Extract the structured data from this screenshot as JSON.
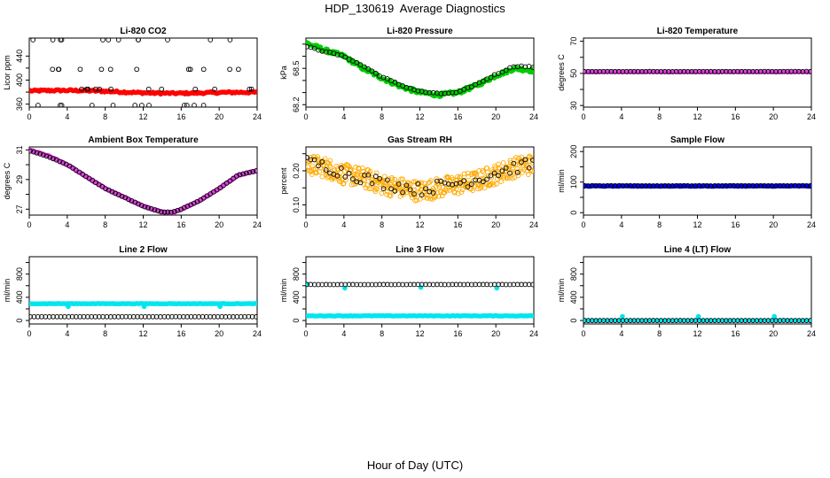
{
  "page": {
    "title": "HDP_130619  Average Diagnostics",
    "x_label": "Hour of Day (UTC)"
  },
  "chart_data": [
    {
      "id": "co2",
      "type": "scatter",
      "title": "Li-820 CO2",
      "ylabel": "Licor ppm",
      "xlim": [
        0,
        24
      ],
      "ylim": [
        355,
        470
      ],
      "yticks": [
        360,
        380,
        400,
        420,
        440
      ],
      "ytick_labels": [
        "360",
        "",
        "400",
        "",
        "440"
      ],
      "series": [
        {
          "style": "filled",
          "color": "#ff0000",
          "gen": {
            "kind": "wave",
            "n": 150,
            "base": 382,
            "amp": 1.5,
            "noise": 1.5,
            "trend": -4
          }
        },
        {
          "style": "open",
          "color": "#000000",
          "gen": {
            "kind": "levels",
            "levels": [
              467,
              418,
              385,
              358
            ],
            "n": 12
          }
        }
      ]
    },
    {
      "id": "pressure",
      "type": "scatter",
      "title": "Li-820 Pressure",
      "ylabel": "kPa",
      "xlim": [
        0,
        24
      ],
      "ylim": [
        68.18,
        68.75
      ],
      "yticks": [
        68.2,
        68.3,
        68.4,
        68.5,
        68.6,
        68.7
      ],
      "ytick_labels": [
        "68.2",
        "",
        "",
        "68.5",
        "",
        ""
      ],
      "series": [
        {
          "style": "filled",
          "color": "#00cc00",
          "gen": {
            "kind": "path",
            "pts": [
              [
                0,
                68.71
              ],
              [
                2,
                68.65
              ],
              [
                4,
                68.6
              ],
              [
                6,
                68.5
              ],
              [
                8,
                68.42
              ],
              [
                10,
                68.35
              ],
              [
                12,
                68.3
              ],
              [
                14,
                68.28
              ],
              [
                16,
                68.3
              ],
              [
                18,
                68.36
              ],
              [
                20,
                68.44
              ],
              [
                22,
                68.5
              ],
              [
                24,
                68.48
              ]
            ],
            "n": 200,
            "noise": 0.015
          }
        },
        {
          "style": "open",
          "color": "#000000",
          "gen": {
            "kind": "path",
            "pts": [
              [
                0,
                68.68
              ],
              [
                2,
                68.64
              ],
              [
                4,
                68.6
              ],
              [
                6,
                68.52
              ],
              [
                8,
                68.43
              ],
              [
                10,
                68.36
              ],
              [
                12,
                68.31
              ],
              [
                14,
                68.29
              ],
              [
                16,
                68.3
              ],
              [
                18,
                68.37
              ],
              [
                20,
                68.45
              ],
              [
                22,
                68.52
              ],
              [
                24,
                68.51
              ]
            ],
            "n": 60,
            "noise": 0.005
          }
        }
      ]
    },
    {
      "id": "temperature",
      "type": "scatter",
      "title": "Li-820 Temperature",
      "ylabel": "degrees C",
      "xlim": [
        0,
        24
      ],
      "ylim": [
        29,
        72
      ],
      "yticks": [
        30,
        40,
        50,
        60,
        70
      ],
      "ytick_labels": [
        "30",
        "",
        "50",
        "",
        "70"
      ],
      "series": [
        {
          "style": "filled",
          "color": "#dd44dd",
          "gen": {
            "kind": "flat",
            "value": 50.9,
            "n": 80,
            "noise": 0.1
          }
        },
        {
          "style": "open",
          "color": "#000000",
          "gen": {
            "kind": "flat",
            "value": 51.2,
            "n": 60,
            "noise": 0.05
          }
        }
      ]
    },
    {
      "id": "ambient",
      "type": "scatter",
      "title": "Ambient Box Temperature",
      "ylabel": "degrees C",
      "xlim": [
        0,
        24
      ],
      "ylim": [
        26.6,
        31.2
      ],
      "yticks": [
        27,
        28,
        29,
        30,
        31
      ],
      "ytick_labels": [
        "27",
        "",
        "29",
        "",
        "31"
      ],
      "series": [
        {
          "style": "filled",
          "color": "#dd44dd",
          "gen": {
            "kind": "path",
            "pts": [
              [
                0,
                31.0
              ],
              [
                2,
                30.6
              ],
              [
                4,
                30.0
              ],
              [
                6,
                29.2
              ],
              [
                8,
                28.4
              ],
              [
                10,
                27.8
              ],
              [
                12,
                27.2
              ],
              [
                14,
                26.8
              ],
              [
                15,
                26.75
              ],
              [
                16,
                27.0
              ],
              [
                18,
                27.6
              ],
              [
                20,
                28.4
              ],
              [
                22,
                29.3
              ],
              [
                24,
                29.6
              ]
            ],
            "n": 160,
            "noise": 0.03
          }
        },
        {
          "style": "open",
          "color": "#000000",
          "gen": {
            "kind": "path",
            "pts": [
              [
                0,
                30.95
              ],
              [
                2,
                30.55
              ],
              [
                4,
                30.0
              ],
              [
                6,
                29.2
              ],
              [
                8,
                28.4
              ],
              [
                10,
                27.8
              ],
              [
                12,
                27.2
              ],
              [
                14,
                26.8
              ],
              [
                15,
                26.8
              ],
              [
                16,
                27.0
              ],
              [
                18,
                27.6
              ],
              [
                20,
                28.4
              ],
              [
                22,
                29.3
              ],
              [
                24,
                29.6
              ]
            ],
            "n": 70,
            "noise": 0.01
          }
        }
      ]
    },
    {
      "id": "rh",
      "type": "scatter",
      "title": "Gas Stream RH",
      "ylabel": "percent",
      "xlim": [
        0,
        24
      ],
      "ylim": [
        0.07,
        0.27
      ],
      "yticks": [
        0.1,
        0.15,
        0.2,
        0.25
      ],
      "ytick_labels": [
        "0.10",
        "",
        "0.20",
        ""
      ],
      "series": [
        {
          "style": "open",
          "color": "#ffaa00",
          "gen": {
            "kind": "path",
            "pts": [
              [
                0,
                0.22
              ],
              [
                2,
                0.21
              ],
              [
                4,
                0.19
              ],
              [
                6,
                0.18
              ],
              [
                8,
                0.16
              ],
              [
                10,
                0.15
              ],
              [
                12,
                0.14
              ],
              [
                14,
                0.15
              ],
              [
                16,
                0.16
              ],
              [
                18,
                0.17
              ],
              [
                20,
                0.19
              ],
              [
                22,
                0.21
              ],
              [
                24,
                0.22
              ]
            ],
            "n": 400,
            "noise": 0.03
          }
        },
        {
          "style": "open",
          "color": "#000000",
          "gen": {
            "kind": "path",
            "pts": [
              [
                0,
                0.225
              ],
              [
                2,
                0.215
              ],
              [
                4,
                0.195
              ],
              [
                6,
                0.18
              ],
              [
                8,
                0.165
              ],
              [
                10,
                0.155
              ],
              [
                12,
                0.145
              ],
              [
                14,
                0.155
              ],
              [
                16,
                0.165
              ],
              [
                18,
                0.175
              ],
              [
                20,
                0.195
              ],
              [
                22,
                0.21
              ],
              [
                24,
                0.22
              ]
            ],
            "n": 60,
            "noise": 0.018
          }
        }
      ]
    },
    {
      "id": "sample",
      "type": "scatter",
      "title": "Sample Flow",
      "ylabel": "ml/min",
      "xlim": [
        0,
        24
      ],
      "ylim": [
        -8,
        215
      ],
      "yticks": [
        0,
        50,
        100,
        150,
        200
      ],
      "ytick_labels": [
        "0",
        "",
        "100",
        "",
        "200"
      ],
      "series": [
        {
          "style": "filled",
          "color": "#0000ee",
          "gen": {
            "kind": "flat",
            "value": 87,
            "n": 120,
            "noise": 1.0
          }
        },
        {
          "style": "open",
          "color": "#000000",
          "gen": {
            "kind": "flat",
            "value": 88,
            "n": 60,
            "noise": 0.5
          }
        }
      ]
    },
    {
      "id": "line2",
      "type": "scatter",
      "title": "Line 2 Flow",
      "ylabel": "ml/min",
      "xlim": [
        0,
        24
      ],
      "ylim": [
        -60,
        1100
      ],
      "yticks": [
        0,
        200,
        400,
        600,
        800,
        1000
      ],
      "ytick_labels": [
        "0",
        "",
        "400",
        "",
        "800",
        ""
      ],
      "series": [
        {
          "style": "filled",
          "color": "#00e5ee",
          "gen": {
            "kind": "flat",
            "value": 290,
            "n": 120,
            "noise": 4,
            "spikes": [
              [
                4.1,
                240
              ],
              [
                12.1,
                240
              ],
              [
                20.1,
                240
              ]
            ]
          }
        },
        {
          "style": "open",
          "color": "#000000",
          "gen": {
            "kind": "flat",
            "value": 65,
            "n": 60,
            "noise": 1
          }
        }
      ]
    },
    {
      "id": "line3",
      "type": "scatter",
      "title": "Line 3 Flow",
      "ylabel": "ml/min",
      "xlim": [
        0,
        24
      ],
      "ylim": [
        -60,
        1100
      ],
      "yticks": [
        0,
        200,
        400,
        600,
        800,
        1000
      ],
      "ytick_labels": [
        "0",
        "",
        "400",
        "",
        "800",
        ""
      ],
      "series": [
        {
          "style": "filled",
          "color": "#00e5ee",
          "gen": {
            "kind": "flat",
            "value": 80,
            "n": 120,
            "noise": 4,
            "spikes": [
              [
                0.1,
                620
              ],
              [
                4.1,
                560
              ],
              [
                12.1,
                570
              ],
              [
                20.1,
                560
              ]
            ]
          }
        },
        {
          "style": "open",
          "color": "#000000",
          "gen": {
            "kind": "flat",
            "value": 620,
            "n": 60,
            "noise": 1
          }
        }
      ]
    },
    {
      "id": "line4",
      "type": "scatter",
      "title": "Line 4 (LT) Flow",
      "ylabel": "ml/min",
      "xlim": [
        0,
        24
      ],
      "ylim": [
        -60,
        1100
      ],
      "yticks": [
        0,
        200,
        400,
        600,
        800,
        1000
      ],
      "ytick_labels": [
        "0",
        "",
        "400",
        "",
        "800",
        ""
      ],
      "series": [
        {
          "style": "filled",
          "color": "#00e5ee",
          "gen": {
            "kind": "flat",
            "value": 0,
            "n": 60,
            "noise": 0.5,
            "spikes": [
              [
                0.1,
                5
              ],
              [
                4.1,
                70
              ],
              [
                12.1,
                70
              ],
              [
                20.1,
                70
              ]
            ]
          }
        },
        {
          "style": "open",
          "color": "#000000",
          "gen": {
            "kind": "flat",
            "value": 0,
            "n": 60,
            "noise": 0.3
          }
        }
      ]
    }
  ],
  "xticks": [
    0,
    4,
    8,
    12,
    16,
    20,
    24
  ]
}
